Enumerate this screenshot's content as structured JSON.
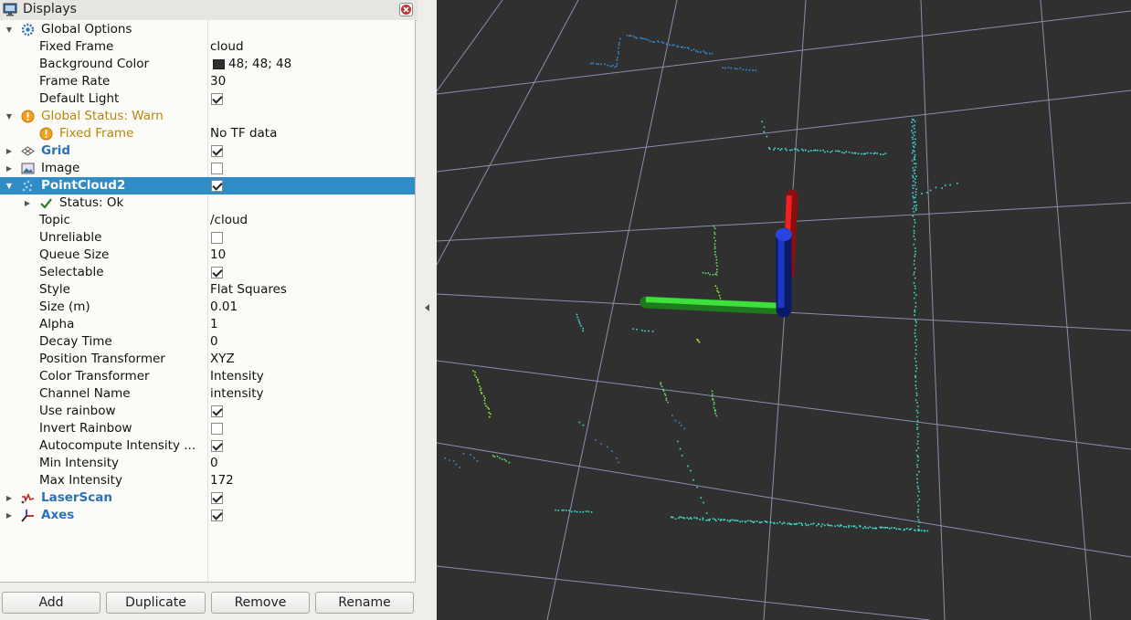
{
  "panel": {
    "title": "Displays",
    "icons": {
      "title": "monitor-icon",
      "close": "close-icon"
    }
  },
  "tree": {
    "global_options": {
      "label": "Global Options",
      "fixed_frame": {
        "label": "Fixed Frame",
        "value": "cloud"
      },
      "background_color": {
        "label": "Background Color",
        "value": "48; 48; 48",
        "color": "#303030"
      },
      "frame_rate": {
        "label": "Frame Rate",
        "value": "30"
      },
      "default_light": {
        "label": "Default Light",
        "checked": true
      }
    },
    "global_status": {
      "label": "Global Status: Warn",
      "fixed_frame": {
        "label": "Fixed Frame",
        "value": "No TF data"
      }
    },
    "grid": {
      "label": "Grid",
      "checked": true
    },
    "image": {
      "label": "Image",
      "checked": false
    },
    "pointcloud2": {
      "label": "PointCloud2",
      "checked": true,
      "status": {
        "label": "Status: Ok"
      },
      "topic": {
        "label": "Topic",
        "value": "/cloud"
      },
      "unreliable": {
        "label": "Unreliable",
        "checked": false
      },
      "queue_size": {
        "label": "Queue Size",
        "value": "10"
      },
      "selectable": {
        "label": "Selectable",
        "checked": true
      },
      "style": {
        "label": "Style",
        "value": "Flat Squares"
      },
      "size": {
        "label": "Size (m)",
        "value": "0.01"
      },
      "alpha": {
        "label": "Alpha",
        "value": "1"
      },
      "decay_time": {
        "label": "Decay Time",
        "value": "0"
      },
      "position_transformer": {
        "label": "Position Transformer",
        "value": "XYZ"
      },
      "color_transformer": {
        "label": "Color Transformer",
        "value": "Intensity"
      },
      "channel_name": {
        "label": "Channel Name",
        "value": "intensity"
      },
      "use_rainbow": {
        "label": "Use rainbow",
        "checked": true
      },
      "invert_rainbow": {
        "label": "Invert Rainbow",
        "checked": false
      },
      "autocompute": {
        "label": "Autocompute Intensity ...",
        "checked": true
      },
      "min_intensity": {
        "label": "Min Intensity",
        "value": "0"
      },
      "max_intensity": {
        "label": "Max Intensity",
        "value": "172"
      }
    },
    "laserscan": {
      "label": "LaserScan",
      "checked": true
    },
    "axes": {
      "label": "Axes",
      "checked": true
    }
  },
  "buttons": {
    "add": "Add",
    "duplicate": "Duplicate",
    "remove": "Remove",
    "rename": "Rename"
  },
  "viewport": {
    "background": "#303030",
    "grid_color": "#8a8fb0",
    "axis_colors": {
      "x": "#dd1111",
      "y": "#22cc22",
      "z": "#1133cc"
    }
  }
}
